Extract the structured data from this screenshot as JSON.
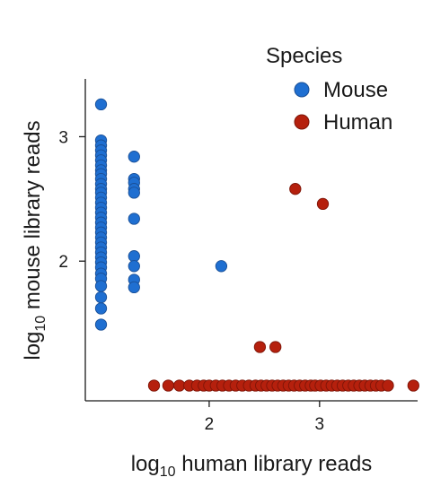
{
  "chart_data": {
    "type": "scatter",
    "title": "",
    "xlabel_pre": "log",
    "xlabel_sub": "10",
    "xlabel_post": " human library reads",
    "ylabel_pre": "log",
    "ylabel_sub": "10",
    "ylabel_post": " mouse library reads",
    "xlim": [
      1.0,
      3.75
    ],
    "ylim": [
      1.0,
      3.45
    ],
    "xticks": [
      2,
      3
    ],
    "yticks": [
      2,
      3
    ],
    "grid": false,
    "legend": {
      "title": "Species",
      "placement": "top-right",
      "entries": [
        {
          "name": "Mouse",
          "color": "#1f6fd1"
        },
        {
          "name": "Human",
          "color": "#b5200d"
        }
      ]
    },
    "series": [
      {
        "name": "Mouse",
        "color": "#1f6fd1",
        "stroke": "#1a4f96",
        "points": [
          [
            1.02,
            3.26
          ],
          [
            1.02,
            2.97
          ],
          [
            1.02,
            2.93
          ],
          [
            1.02,
            2.89
          ],
          [
            1.02,
            2.85
          ],
          [
            1.02,
            2.81
          ],
          [
            1.02,
            2.77
          ],
          [
            1.02,
            2.73
          ],
          [
            1.02,
            2.7
          ],
          [
            1.02,
            2.66
          ],
          [
            1.02,
            2.62
          ],
          [
            1.02,
            2.58
          ],
          [
            1.02,
            2.55
          ],
          [
            1.02,
            2.51
          ],
          [
            1.02,
            2.47
          ],
          [
            1.02,
            2.43
          ],
          [
            1.02,
            2.39
          ],
          [
            1.02,
            2.35
          ],
          [
            1.02,
            2.31
          ],
          [
            1.02,
            2.27
          ],
          [
            1.02,
            2.23
          ],
          [
            1.02,
            2.19
          ],
          [
            1.02,
            2.15
          ],
          [
            1.02,
            2.11
          ],
          [
            1.02,
            2.07
          ],
          [
            1.02,
            2.03
          ],
          [
            1.02,
            1.99
          ],
          [
            1.02,
            1.95
          ],
          [
            1.02,
            1.9
          ],
          [
            1.02,
            1.86
          ],
          [
            1.02,
            1.8
          ],
          [
            1.02,
            1.71
          ],
          [
            1.02,
            1.62
          ],
          [
            1.02,
            1.49
          ],
          [
            1.32,
            2.84
          ],
          [
            1.32,
            2.66
          ],
          [
            1.32,
            2.63
          ],
          [
            1.32,
            2.58
          ],
          [
            1.32,
            2.55
          ],
          [
            1.32,
            2.34
          ],
          [
            1.32,
            2.04
          ],
          [
            1.32,
            1.96
          ],
          [
            1.32,
            1.85
          ],
          [
            1.32,
            1.79
          ],
          [
            2.11,
            1.96
          ]
        ]
      },
      {
        "name": "Human",
        "color": "#b5200d",
        "stroke": "#7d1508",
        "points": [
          [
            2.78,
            2.58
          ],
          [
            3.03,
            2.46
          ],
          [
            2.46,
            1.31
          ],
          [
            2.6,
            1.31
          ],
          [
            1.5,
            1.0
          ],
          [
            1.63,
            1.0
          ],
          [
            1.73,
            1.0
          ],
          [
            1.82,
            1.0
          ],
          [
            1.89,
            1.0
          ],
          [
            1.95,
            1.0
          ],
          [
            2.0,
            1.0
          ],
          [
            2.06,
            1.0
          ],
          [
            2.12,
            1.0
          ],
          [
            2.18,
            1.0
          ],
          [
            2.24,
            1.0
          ],
          [
            2.3,
            1.0
          ],
          [
            2.36,
            1.0
          ],
          [
            2.42,
            1.0
          ],
          [
            2.47,
            1.0
          ],
          [
            2.52,
            1.0
          ],
          [
            2.57,
            1.0
          ],
          [
            2.62,
            1.0
          ],
          [
            2.67,
            1.0
          ],
          [
            2.72,
            1.0
          ],
          [
            2.77,
            1.0
          ],
          [
            2.82,
            1.0
          ],
          [
            2.87,
            1.0
          ],
          [
            2.92,
            1.0
          ],
          [
            2.96,
            1.0
          ],
          [
            3.01,
            1.0
          ],
          [
            3.06,
            1.0
          ],
          [
            3.11,
            1.0
          ],
          [
            3.16,
            1.0
          ],
          [
            3.21,
            1.0
          ],
          [
            3.26,
            1.0
          ],
          [
            3.31,
            1.0
          ],
          [
            3.36,
            1.0
          ],
          [
            3.41,
            1.0
          ],
          [
            3.46,
            1.0
          ],
          [
            3.51,
            1.0
          ],
          [
            3.56,
            1.0
          ],
          [
            3.62,
            1.0
          ],
          [
            3.85,
            1.0
          ]
        ]
      }
    ]
  }
}
